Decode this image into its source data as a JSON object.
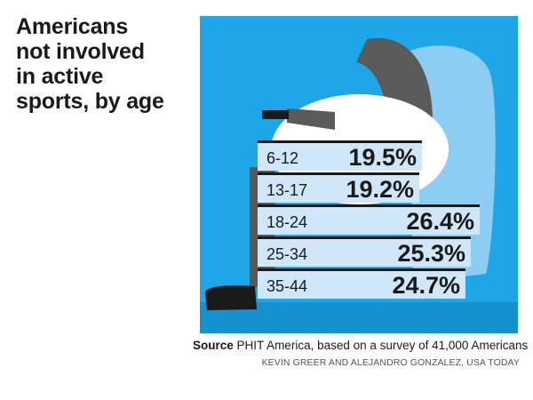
{
  "chart_data": {
    "type": "bar",
    "orientation": "horizontal",
    "title": "Americans not involved in active sports, by age",
    "categories": [
      "6-12",
      "13-17",
      "18-24",
      "25-34",
      "35-44"
    ],
    "values": [
      19.5,
      19.2,
      26.4,
      25.3,
      24.7
    ],
    "value_labels": [
      "19.5%",
      "19.2%",
      "26.4%",
      "25.3%",
      "24.7%"
    ],
    "unit": "%",
    "xlim": [
      0,
      26.4
    ],
    "source_label": "Source",
    "source_text": "PHIT America, based on a survey of 41,000 Americans",
    "credit": "KEVIN GREER AND ALEJANDRO GONZALEZ, USA TODAY"
  },
  "title_lines": [
    "Americans",
    "not involved",
    "in active",
    "sports, by age"
  ],
  "colors": {
    "panel": "#1ea6e8",
    "bar": "#cfe7f8",
    "text": "#1a1a1a",
    "couch": "#8ccdf3",
    "person": "#5a5a5a"
  }
}
